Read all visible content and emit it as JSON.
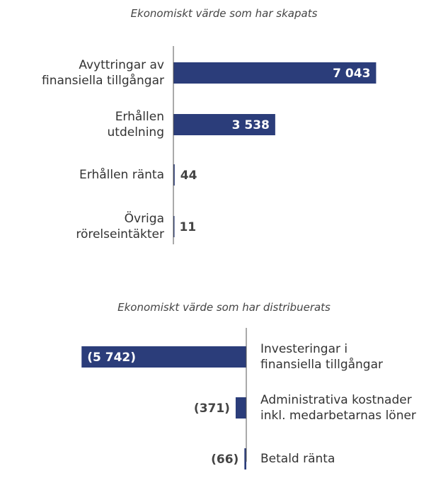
{
  "chart_data": [
    {
      "type": "bar",
      "orientation": "horizontal",
      "title": "Ekonomiskt värde som har skapats",
      "categories": [
        "Avyttringar av\nfinansiella tillgångar",
        "Erhållen\nutdelning",
        "Erhållen ränta",
        "Övriga\nrörelseintäkter"
      ],
      "values": [
        7043,
        3538,
        44,
        11
      ],
      "value_labels": [
        "7 043",
        "3 538",
        "44",
        "11"
      ],
      "color": "#2b3d7a",
      "xlim": [
        0,
        7500
      ]
    },
    {
      "type": "bar",
      "orientation": "horizontal",
      "title": "Ekonomiskt värde som har distribuerats",
      "categories": [
        "Investeringar i\nfinansiella tillgångar",
        "Administrativa kostnader\ninkl. medarbetarnas löner",
        "Betald ränta"
      ],
      "values": [
        -5742,
        -371,
        -66
      ],
      "value_labels": [
        "(5 742)",
        "(371)",
        "(66)"
      ],
      "color": "#2b3d7a",
      "xlim": [
        -7500,
        0
      ]
    }
  ]
}
